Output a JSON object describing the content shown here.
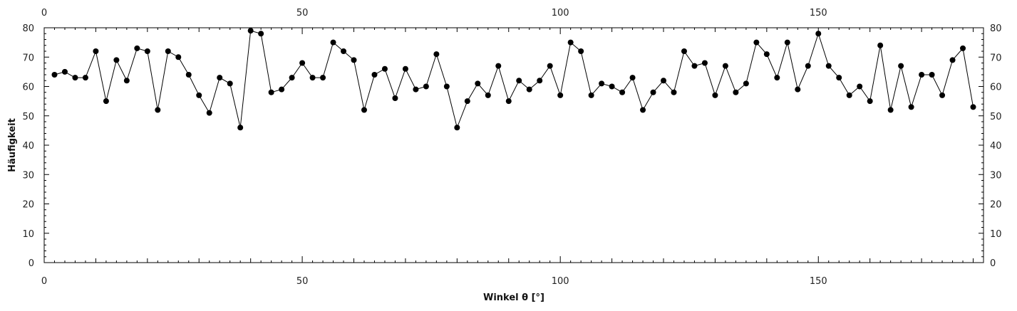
{
  "chart_data": {
    "type": "line",
    "title": "",
    "xlabel": "Winkel θ [°]",
    "ylabel": "Häufigkeit",
    "xlim": [
      0,
      182
    ],
    "ylim": [
      0,
      80
    ],
    "x_ticks": [
      0,
      50,
      100,
      150
    ],
    "y_ticks": [
      0,
      10,
      20,
      30,
      40,
      50,
      60,
      70,
      80
    ],
    "x_tick_labels": [
      "0",
      "50",
      "100",
      "150"
    ],
    "y_tick_labels": [
      "0",
      "10",
      "20",
      "30",
      "40",
      "50",
      "60",
      "70",
      "80"
    ],
    "grid": false,
    "marker": "circle",
    "line_color": "#000000",
    "series": [
      {
        "x": [
          2,
          4,
          6,
          8,
          10,
          12,
          14,
          16,
          18,
          20,
          22,
          24,
          26,
          28,
          30,
          32,
          34,
          36,
          38,
          40,
          42,
          44,
          46,
          48,
          50,
          52,
          54,
          56,
          58,
          60,
          62,
          64,
          66,
          68,
          70,
          72,
          74,
          76,
          78,
          80,
          82,
          84,
          86,
          88,
          90,
          92,
          94,
          96,
          98,
          100,
          102,
          104,
          106,
          108,
          110,
          112,
          114,
          116,
          118,
          120,
          122,
          124,
          126,
          128,
          130,
          132,
          134,
          136,
          138,
          140,
          142,
          144,
          146,
          148,
          150,
          152,
          154,
          156,
          158,
          160,
          162,
          164,
          166,
          168,
          170,
          172,
          174,
          176,
          178,
          180
        ],
        "values": [
          64,
          65,
          63,
          63,
          72,
          55,
          69,
          62,
          73,
          72,
          52,
          72,
          70,
          64,
          57,
          51,
          63,
          61,
          46,
          79,
          78,
          58,
          59,
          63,
          68,
          63,
          63,
          75,
          72,
          69,
          52,
          64,
          66,
          56,
          66,
          59,
          60,
          71,
          60,
          46,
          55,
          61,
          57,
          67,
          55,
          62,
          59,
          62,
          67,
          57,
          75,
          72,
          57,
          61,
          60,
          58,
          63,
          52,
          58,
          62,
          58,
          72,
          67,
          68,
          57,
          67,
          58,
          61,
          75,
          71,
          63,
          75,
          59,
          67,
          78,
          67,
          63,
          57,
          60,
          55,
          74,
          52,
          67,
          53,
          64,
          64,
          57,
          69,
          73,
          53
        ]
      }
    ]
  }
}
